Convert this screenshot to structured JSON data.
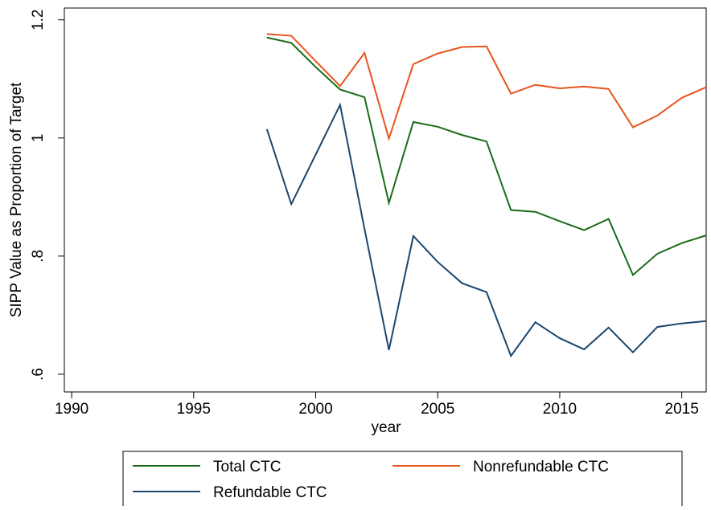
{
  "chart_data": {
    "type": "line",
    "x": [
      1998,
      1999,
      2000,
      2001,
      2002,
      2003,
      2004,
      2005,
      2006,
      2007,
      2008,
      2009,
      2010,
      2011,
      2012,
      2013,
      2014,
      2015,
      2016
    ],
    "series": [
      {
        "name": "Total CTC",
        "color": "#1a6b1a",
        "values": [
          1.17,
          1.161,
          1.12,
          1.082,
          1.069,
          0.89,
          1.027,
          1.019,
          1.005,
          0.994,
          0.878,
          0.875,
          0.859,
          0.844,
          0.863,
          0.768,
          0.804,
          0.822,
          0.835
        ]
      },
      {
        "name": "Nonrefundable CTC",
        "color": "#e8541e",
        "values": [
          1.176,
          1.173,
          1.13,
          1.088,
          1.144,
          0.999,
          1.125,
          1.143,
          1.154,
          1.155,
          1.075,
          1.09,
          1.084,
          1.087,
          1.083,
          1.018,
          1.038,
          1.068,
          1.086
        ]
      },
      {
        "name": "Refundable CTC",
        "color": "#1a476f",
        "values": [
          1.015,
          0.888,
          0.972,
          1.056,
          0.846,
          0.641,
          0.834,
          0.79,
          0.754,
          0.739,
          0.631,
          0.688,
          0.661,
          0.642,
          0.679,
          0.637,
          0.68,
          0.686,
          0.69
        ]
      }
    ],
    "x_label": "year",
    "y_label": "SIPP Value as Proportion of Target",
    "xlim": [
      1989.7,
      2016
    ],
    "xticks": [
      1990,
      1995,
      2000,
      2005,
      2010,
      2015
    ],
    "ylim": [
      0.57,
      1.22
    ],
    "yticks": [
      {
        "value": 0.6,
        "label": ".6"
      },
      {
        "value": 0.8,
        "label": ".8"
      },
      1,
      {
        "value": 1.2,
        "label": "1.2"
      }
    ],
    "grid": false,
    "legend": "bottom"
  }
}
